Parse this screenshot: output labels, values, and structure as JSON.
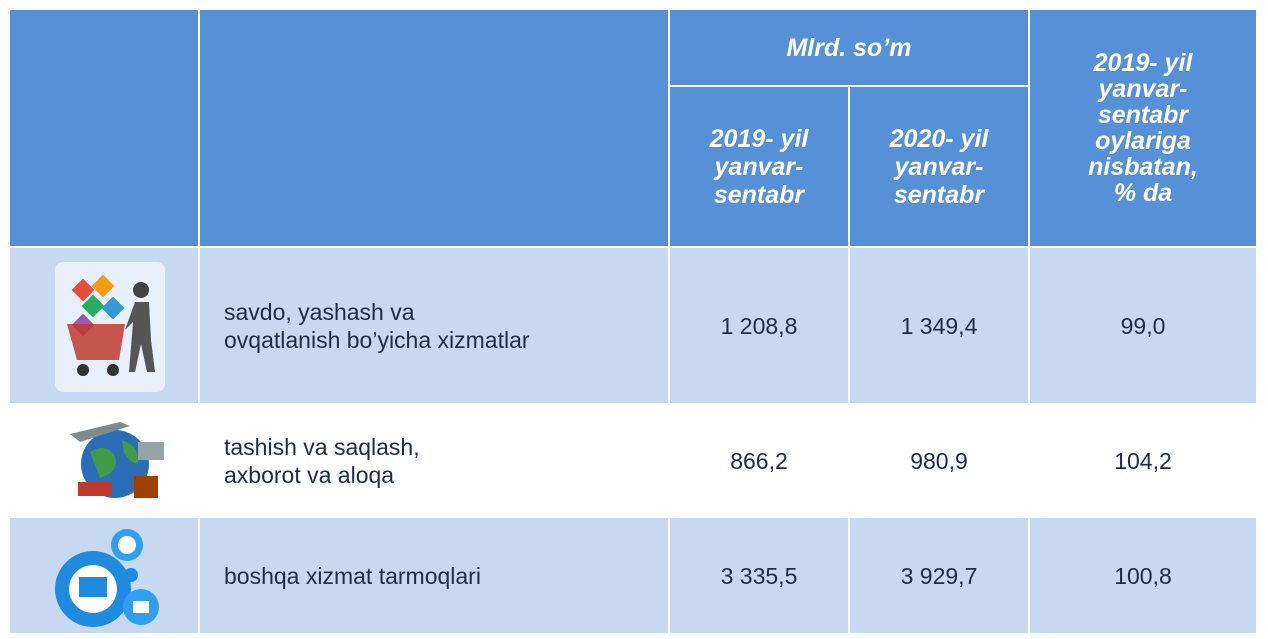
{
  "header": {
    "group": "Mlrd. so’m",
    "columns": [
      [
        "2019- yil",
        "yanvar-",
        "sentabr"
      ],
      [
        "2020- yil",
        "yanvar-",
        "sentabr"
      ]
    ],
    "ratio": [
      "2019- yil",
      "yanvar-",
      "sentabr",
      "oylariga",
      "nisbatan,",
      "% da"
    ]
  },
  "table": {
    "rows": [
      {
        "label": [
          "savdo, yashash va",
          "ovqatlanish bo’yicha xizmatlar"
        ],
        "values": [
          "1 208,8",
          "1 349,4",
          "99,0"
        ]
      },
      {
        "label": [
          "tashish va saqlash,",
          "axborot va aloqa"
        ],
        "values": [
          "866,2",
          "980,9",
          "104,2"
        ]
      },
      {
        "label": [
          "boshqa xizmat tarmoqlari"
        ],
        "values": [
          "3 335,5",
          "3 929,7",
          "100,8"
        ]
      }
    ]
  }
}
